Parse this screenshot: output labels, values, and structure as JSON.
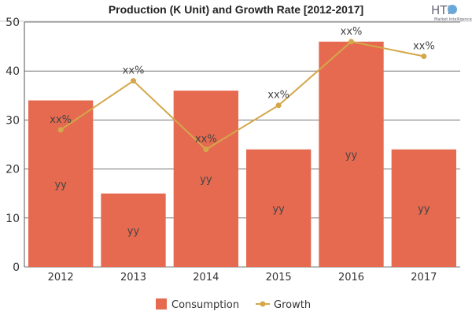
{
  "chart_data": {
    "type": "bar",
    "title": "Production (K Unit) and Growth Rate [2012-2017]",
    "categories": [
      "2012",
      "2013",
      "2014",
      "2015",
      "2016",
      "2017"
    ],
    "series": [
      {
        "name": "Consumption",
        "type": "bar",
        "values": [
          34,
          15,
          36,
          24,
          46,
          24
        ],
        "labels": [
          "yy",
          "yy",
          "yy",
          "yy",
          "yy",
          "yy"
        ],
        "color": "#e66a50"
      },
      {
        "name": "Growth",
        "type": "line",
        "values": [
          28,
          38,
          24,
          33,
          46,
          43
        ],
        "labels": [
          "xx%",
          "xx%",
          "xx%",
          "xx%",
          "xx%",
          "xx%"
        ],
        "color": "#d4a74a"
      }
    ],
    "ylim": [
      0,
      50
    ],
    "yticks": [
      0,
      10,
      20,
      30,
      40,
      50
    ],
    "grid": true,
    "legend": "bottom"
  },
  "logo": {
    "text": "HTF",
    "subtext": "Market Intelligence"
  }
}
